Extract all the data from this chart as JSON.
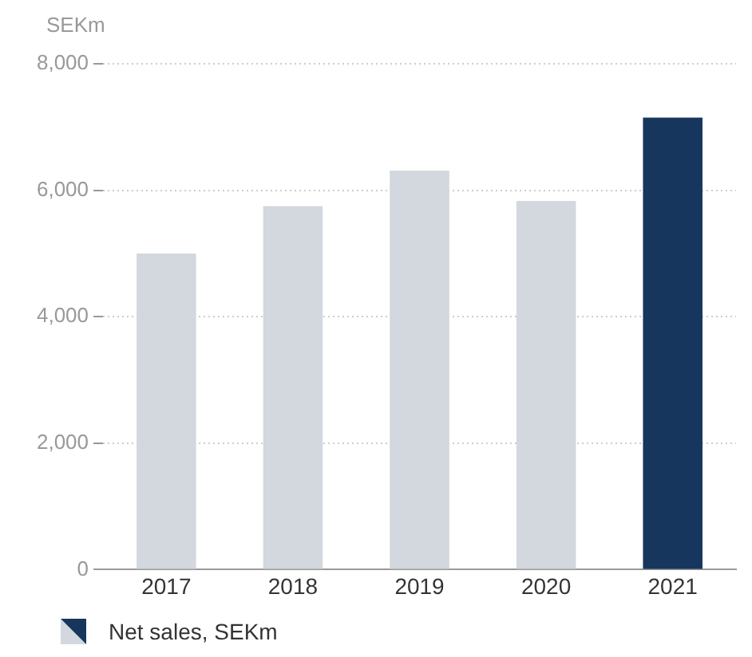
{
  "chart_data": {
    "type": "bar",
    "ylabel": "SEKm",
    "categories": [
      "2017",
      "2018",
      "2019",
      "2020",
      "2021"
    ],
    "series": [
      {
        "name": "Net sales, SEKm",
        "colors": [
          "#d3d7de",
          "#d3d7de",
          "#d3d7de",
          "#d3d7de",
          "#17365d"
        ],
        "values": [
          5000,
          5750,
          6310,
          5830,
          7150
        ]
      }
    ],
    "ylim": [
      0,
      8000
    ],
    "yticks": [
      0,
      {
        "value": 2000,
        "label": "2,000"
      },
      {
        "value": 4000,
        "label": "4,000"
      },
      {
        "value": 6000,
        "label": "6,000"
      },
      {
        "value": 8000,
        "label": "8,000"
      }
    ],
    "grid": "y",
    "legend": "bottom left"
  }
}
